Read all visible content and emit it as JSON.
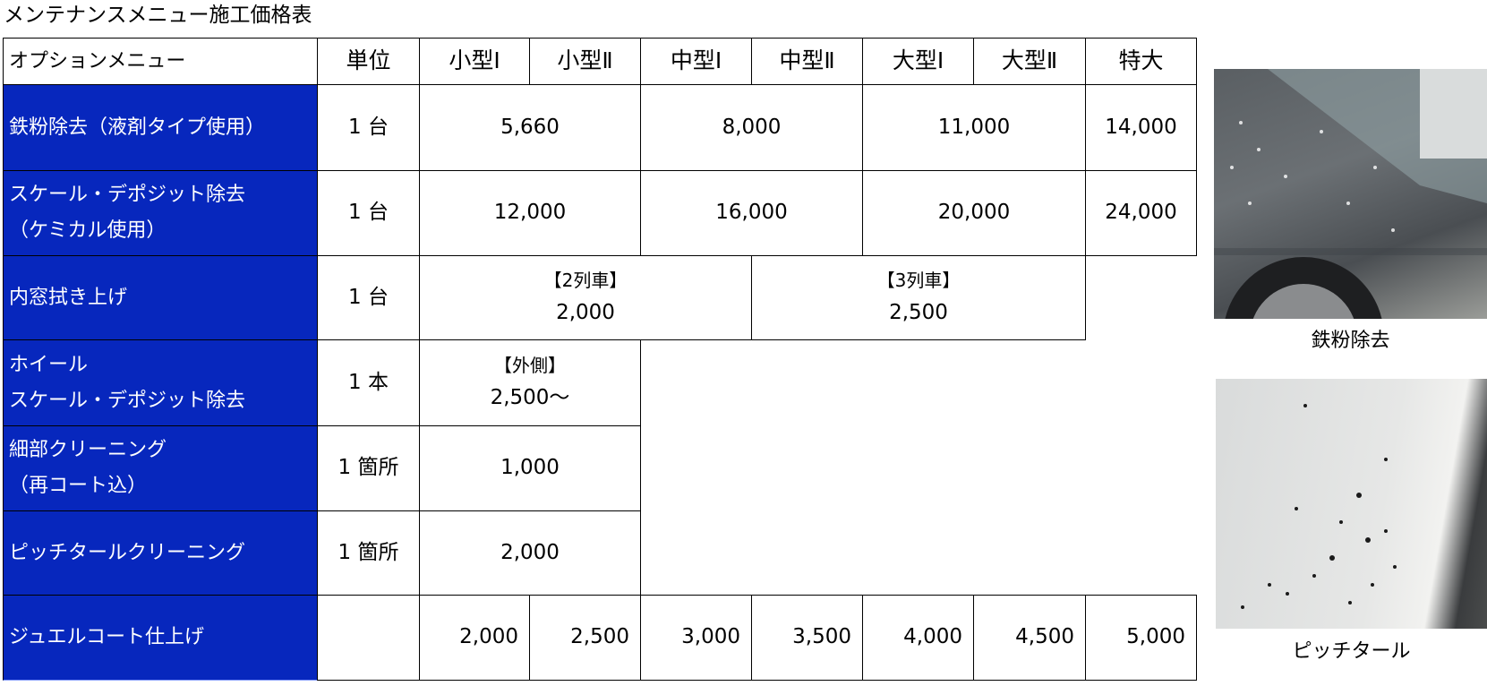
{
  "title": "メンテナンスメニュー施工価格表",
  "header": [
    "オプションメニュー",
    "単位",
    "小型Ⅰ",
    "小型Ⅱ",
    "中型Ⅰ",
    "中型Ⅱ",
    "大型Ⅰ",
    "大型Ⅱ",
    "特大"
  ],
  "rows": [
    {
      "menu": [
        "鉄粉除去（液剤タイプ使用）"
      ],
      "unit": "1 台",
      "prices": [
        "5,660",
        "8,000",
        "11,000",
        "14,000"
      ]
    },
    {
      "menu": [
        "スケール・デポジット除去",
        "（ケミカル使用）"
      ],
      "unit": "1 台",
      "prices": [
        "12,000",
        "16,000",
        "20,000",
        "24,000"
      ]
    },
    {
      "menu": [
        "内窓拭き上げ"
      ],
      "unit": "1 台",
      "prices": [
        {
          "label": "【2列車】",
          "value": "2,000"
        },
        {
          "label": "【3列車】",
          "value": "2,500"
        }
      ]
    },
    {
      "menu": [
        "ホイール",
        "スケール・デポジット除去"
      ],
      "unit": "1 本",
      "prices": [
        {
          "label": "【外側】",
          "value": "2,500～"
        }
      ]
    },
    {
      "menu": [
        "細部クリーニング",
        "（再コート込）"
      ],
      "unit": "1 箇所",
      "prices": [
        "1,000"
      ]
    },
    {
      "menu": [
        "ピッチタールクリーニング"
      ],
      "unit": "1 箇所",
      "prices": [
        "2,000"
      ]
    },
    {
      "menu": [
        "ジュエルコート仕上げ"
      ],
      "unit": "",
      "prices": [
        "2,000",
        "2,500",
        "3,000",
        "3,500",
        "4,000",
        "4,500",
        "5,000"
      ]
    }
  ],
  "photos": [
    {
      "caption": "鉄粉除去",
      "icon": "car-iron-powder-photo"
    },
    {
      "caption": "ピッチタール",
      "icon": "car-pitch-tar-photo"
    }
  ],
  "colors": {
    "menu_bg": "#0727bd",
    "menu_text": "#ffffff"
  }
}
